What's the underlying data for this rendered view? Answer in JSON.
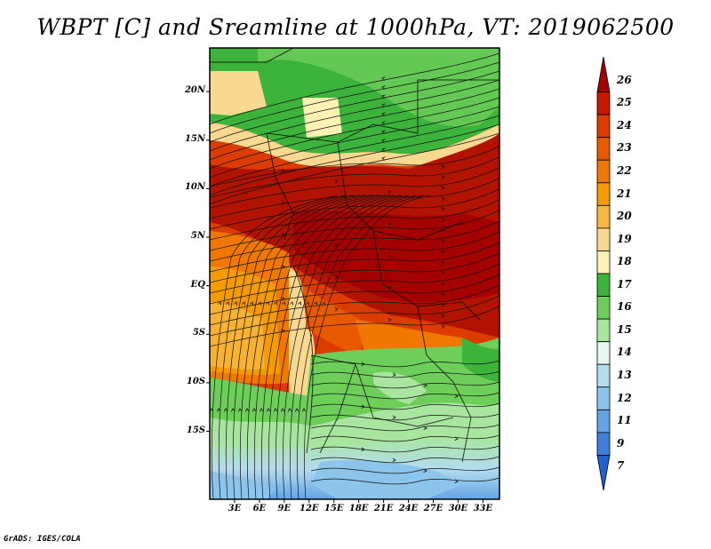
{
  "title": "WBPT [C] and Sreamline at 1000hPa, VT: 2019062500",
  "credit": "GrADS: IGES/COLA",
  "lat_labels": [
    {
      "text": "20N",
      "lat": 20
    },
    {
      "text": "15N",
      "lat": 15
    },
    {
      "text": "10N",
      "lat": 10
    },
    {
      "text": "5N",
      "lat": 5
    },
    {
      "text": "EQ",
      "lat": 0
    },
    {
      "text": "5S",
      "lat": -5
    },
    {
      "text": "10S",
      "lat": -10
    },
    {
      "text": "15S",
      "lat": -15
    }
  ],
  "lon_labels": [
    {
      "text": "3E",
      "lon": 3
    },
    {
      "text": "6E",
      "lon": 6
    },
    {
      "text": "9E",
      "lon": 9
    },
    {
      "text": "12E",
      "lon": 12
    },
    {
      "text": "15E",
      "lon": 15
    },
    {
      "text": "18E",
      "lon": 18
    },
    {
      "text": "21E",
      "lon": 21
    },
    {
      "text": "24E",
      "lon": 24
    },
    {
      "text": "27E",
      "lon": 27
    },
    {
      "text": "30E",
      "lon": 30
    },
    {
      "text": "33E",
      "lon": 33
    }
  ],
  "colorbar": {
    "labels": [
      "26",
      "25",
      "24",
      "23",
      "22",
      "21",
      "20",
      "19",
      "18",
      "17",
      "16",
      "15",
      "14",
      "13",
      "12",
      "11",
      "9",
      "7"
    ],
    "colors": [
      "#a50000",
      "#c41a00",
      "#dc3c00",
      "#e85a00",
      "#f07800",
      "#f59a00",
      "#f8b840",
      "#f9d890",
      "#fdf2b4",
      "#3cb43c",
      "#6ece5a",
      "#a8e6a0",
      "#e6f8f0",
      "#b4dcf0",
      "#8cc4ec",
      "#64a4e4",
      "#4080d8",
      "#2060d0"
    ]
  },
  "map_extent": {
    "lon_min": 0,
    "lon_max": 35,
    "lat_min": -22,
    "lat_max": 24.5
  }
}
